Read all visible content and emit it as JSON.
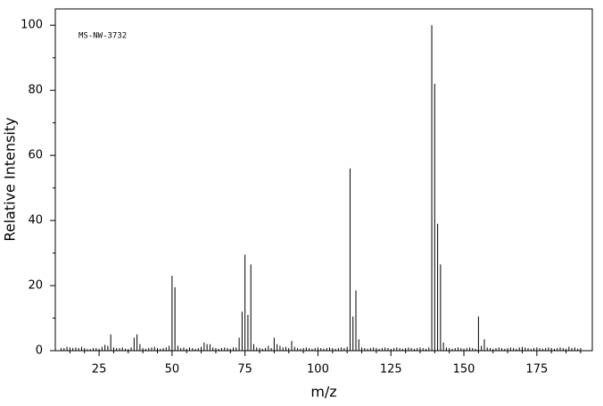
{
  "chart_data": {
    "type": "stem",
    "annotation": "MS-NW-3732",
    "x_label": "m/z",
    "y_label": "Relative Intensity",
    "color": "#000000",
    "xlim": [
      10,
      194
    ],
    "ylim": [
      0,
      105
    ],
    "xticks": [
      25,
      50,
      75,
      100,
      125,
      150,
      175
    ],
    "xminorticks": [
      15,
      20,
      30,
      35,
      40,
      45,
      55,
      60,
      65,
      70,
      80,
      85,
      90,
      95,
      105,
      110,
      115,
      120,
      130,
      135,
      140,
      145,
      155,
      160,
      165,
      170,
      180,
      185,
      190
    ],
    "yticks": [
      0,
      20,
      40,
      60,
      80,
      100
    ],
    "yminorticks": [
      10,
      30,
      50,
      70,
      90
    ],
    "x": [
      12,
      13,
      14,
      15,
      16,
      17,
      18,
      19,
      20,
      21,
      22,
      23,
      24,
      25,
      26,
      27,
      28,
      29,
      30,
      31,
      32,
      33,
      34,
      35,
      36,
      37,
      38,
      39,
      40,
      41,
      42,
      43,
      44,
      45,
      46,
      47,
      48,
      49,
      50,
      51,
      52,
      53,
      54,
      55,
      56,
      57,
      58,
      59,
      60,
      61,
      62,
      63,
      64,
      65,
      66,
      67,
      68,
      69,
      70,
      71,
      72,
      73,
      74,
      75,
      76,
      77,
      78,
      79,
      80,
      81,
      82,
      83,
      84,
      85,
      86,
      87,
      88,
      89,
      90,
      91,
      92,
      93,
      94,
      95,
      96,
      97,
      98,
      99,
      100,
      101,
      102,
      103,
      104,
      105,
      106,
      107,
      108,
      109,
      110,
      111,
      112,
      113,
      114,
      115,
      116,
      117,
      118,
      119,
      120,
      121,
      122,
      123,
      124,
      125,
      126,
      127,
      128,
      129,
      130,
      131,
      132,
      133,
      134,
      135,
      136,
      137,
      138,
      139,
      140,
      141,
      142,
      143,
      144,
      145,
      146,
      147,
      148,
      149,
      150,
      151,
      152,
      153,
      154,
      155,
      156,
      157,
      158,
      159,
      160,
      161,
      162,
      163,
      164,
      165,
      166,
      167,
      168,
      169,
      170,
      171,
      172,
      173,
      174,
      175,
      176,
      177,
      178,
      179,
      180,
      181,
      182,
      183,
      184,
      185,
      186,
      187,
      188,
      189,
      190
    ],
    "values": [
      0.8,
      0.8,
      1.2,
      1,
      0.8,
      1,
      0.8,
      1.2,
      0.8,
      0.5,
      0.5,
      0.8,
      0.8,
      0.6,
      1.2,
      1.8,
      1.5,
      5,
      1,
      0.8,
      0.8,
      1,
      0.6,
      0.5,
      1,
      4,
      5,
      2,
      0.8,
      0.6,
      0.8,
      1,
      1.2,
      0.8,
      0.6,
      0.8,
      1,
      1.5,
      23,
      19.5,
      1.5,
      0.8,
      1,
      0.6,
      1,
      0.8,
      0.6,
      0.8,
      1.2,
      2.5,
      2,
      2,
      1,
      0.8,
      0.6,
      0.8,
      1,
      0.8,
      0.6,
      1,
      1,
      4,
      12,
      29.5,
      11,
      26.5,
      2,
      1,
      0.8,
      0.6,
      0.8,
      1.5,
      0.8,
      4,
      2,
      1.5,
      1,
      1.2,
      0.8,
      3,
      1.2,
      0.8,
      0.6,
      0.8,
      1,
      0.8,
      0.6,
      0.8,
      1,
      0.8,
      0.6,
      0.8,
      1,
      0.8,
      0.6,
      0.8,
      1,
      0.8,
      1.2,
      56,
      10.5,
      18.5,
      3.5,
      1,
      0.8,
      0.6,
      0.8,
      1,
      0.8,
      0.6,
      0.8,
      1,
      0.8,
      0.6,
      0.8,
      1,
      0.8,
      0.6,
      0.8,
      1,
      0.8,
      0.6,
      0.8,
      1,
      0.8,
      0.6,
      1,
      100,
      82,
      39,
      26.5,
      2.5,
      1,
      0.8,
      0.6,
      0.8,
      1,
      0.8,
      0.6,
      0.8,
      1,
      0.8,
      0.6,
      10.5,
      1.5,
      3.5,
      1,
      0.8,
      0.6,
      0.8,
      1,
      0.8,
      0.6,
      0.8,
      1,
      0.8,
      0.6,
      1,
      1.2,
      1,
      0.8,
      0.6,
      0.8,
      1,
      0.8,
      0.6,
      0.8,
      1,
      0.8,
      0.6,
      0.8,
      1,
      0.8,
      0.6,
      1.2,
      0.8,
      1,
      0.6,
      0.8
    ]
  }
}
